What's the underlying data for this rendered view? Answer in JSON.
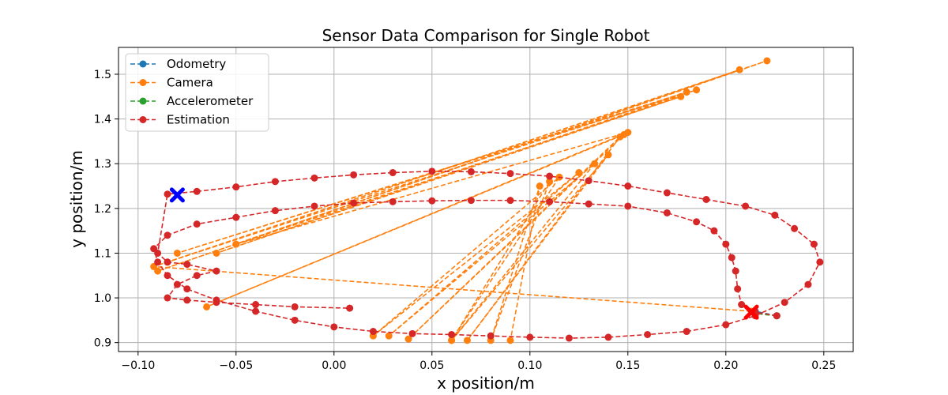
{
  "chart_data": {
    "type": "line",
    "title": "Sensor Data Comparison for Single Robot",
    "xlabel": "x position/m",
    "ylabel": "y position/m",
    "xlim": [
      -0.11,
      0.265
    ],
    "ylim": [
      0.88,
      1.56
    ],
    "xticks": [
      -0.1,
      -0.05,
      0.0,
      0.05,
      0.1,
      0.15,
      0.2,
      0.25
    ],
    "xtick_labels": [
      "−0.10",
      "−0.05",
      "0.00",
      "0.05",
      "0.10",
      "0.15",
      "0.20",
      "0.25"
    ],
    "yticks": [
      0.9,
      1.0,
      1.1,
      1.2,
      1.3,
      1.4,
      1.5
    ],
    "ytick_labels": [
      "0.9",
      "1.0",
      "1.1",
      "1.2",
      "1.3",
      "1.4",
      "1.5"
    ],
    "grid": true,
    "legend_position": "top-left",
    "series": [
      {
        "name": "Odometry",
        "color": "#1f77b4",
        "x": [
          0.226,
          0.215
        ],
        "y": [
          0.96,
          0.97
        ]
      },
      {
        "name": "Camera",
        "color": "#ff7f0e",
        "x": [
          0.213,
          -0.092,
          0.221,
          -0.09,
          0.207,
          -0.085,
          0.18,
          -0.08,
          0.185,
          -0.06,
          0.177,
          -0.05,
          0.15,
          -0.065,
          0.148,
          0.038,
          0.146,
          0.068,
          0.14,
          0.06,
          0.133,
          0.028,
          0.125,
          0.02,
          0.115,
          0.06,
          0.11,
          0.08,
          0.105,
          0.09
        ],
        "y": [
          0.97,
          1.07,
          1.53,
          1.06,
          1.51,
          1.08,
          1.46,
          1.1,
          1.465,
          1.1,
          1.45,
          1.12,
          1.37,
          0.98,
          1.365,
          0.908,
          1.36,
          0.905,
          1.32,
          0.905,
          1.3,
          0.915,
          1.28,
          0.915,
          1.27,
          0.905,
          1.26,
          0.905,
          1.25,
          0.905
        ]
      },
      {
        "name": "Accelerometer",
        "color": "#2ca02c",
        "x": [
          0.226,
          0.215
        ],
        "y": [
          0.96,
          0.965
        ]
      },
      {
        "name": "Estimation",
        "color": "#d62728",
        "x": [
          0.226,
          0.215,
          0.208,
          0.206,
          0.205,
          0.203,
          0.2,
          0.194,
          0.185,
          0.17,
          0.15,
          0.13,
          0.11,
          0.09,
          0.07,
          0.05,
          0.03,
          0.01,
          -0.01,
          -0.03,
          -0.05,
          -0.07,
          -0.085,
          -0.092,
          -0.09,
          -0.085,
          -0.075,
          -0.06,
          -0.04,
          -0.02,
          0.0,
          0.02,
          0.04,
          0.06,
          0.08,
          0.1,
          0.12,
          0.14,
          0.16,
          0.18,
          0.2,
          0.215,
          0.23,
          0.242,
          0.248,
          0.245,
          0.235,
          0.225,
          0.21,
          0.19,
          0.17,
          0.15,
          0.13,
          0.11,
          0.09,
          0.07,
          0.05,
          0.03,
          0.01,
          -0.01,
          -0.03,
          -0.05,
          -0.07,
          -0.085,
          -0.09,
          -0.085,
          -0.075,
          -0.06,
          -0.07,
          -0.08,
          -0.085,
          -0.075,
          -0.06,
          -0.04,
          -0.02,
          0.008
        ],
        "y": [
          0.96,
          0.968,
          0.985,
          1.02,
          1.06,
          1.09,
          1.12,
          1.15,
          1.17,
          1.19,
          1.205,
          1.21,
          1.215,
          1.218,
          1.218,
          1.217,
          1.215,
          1.212,
          1.205,
          1.195,
          1.18,
          1.165,
          1.14,
          1.11,
          1.08,
          1.05,
          1.02,
          0.995,
          0.97,
          0.95,
          0.935,
          0.925,
          0.92,
          0.918,
          0.915,
          0.912,
          0.91,
          0.912,
          0.918,
          0.925,
          0.94,
          0.96,
          0.99,
          1.03,
          1.08,
          1.12,
          1.155,
          1.185,
          1.205,
          1.22,
          1.235,
          1.25,
          1.262,
          1.272,
          1.278,
          1.282,
          1.283,
          1.28,
          1.275,
          1.268,
          1.26,
          1.248,
          1.238,
          1.232,
          1.1,
          1.08,
          1.075,
          1.06,
          1.05,
          1.03,
          1.0,
          0.995,
          0.99,
          0.985,
          0.98,
          0.977
        ]
      }
    ],
    "markers": [
      {
        "name": "start",
        "color": "#0000ff",
        "x": -0.08,
        "y": 1.23
      },
      {
        "name": "end",
        "color": "#ff0000",
        "x": 0.213,
        "y": 0.968
      }
    ]
  }
}
